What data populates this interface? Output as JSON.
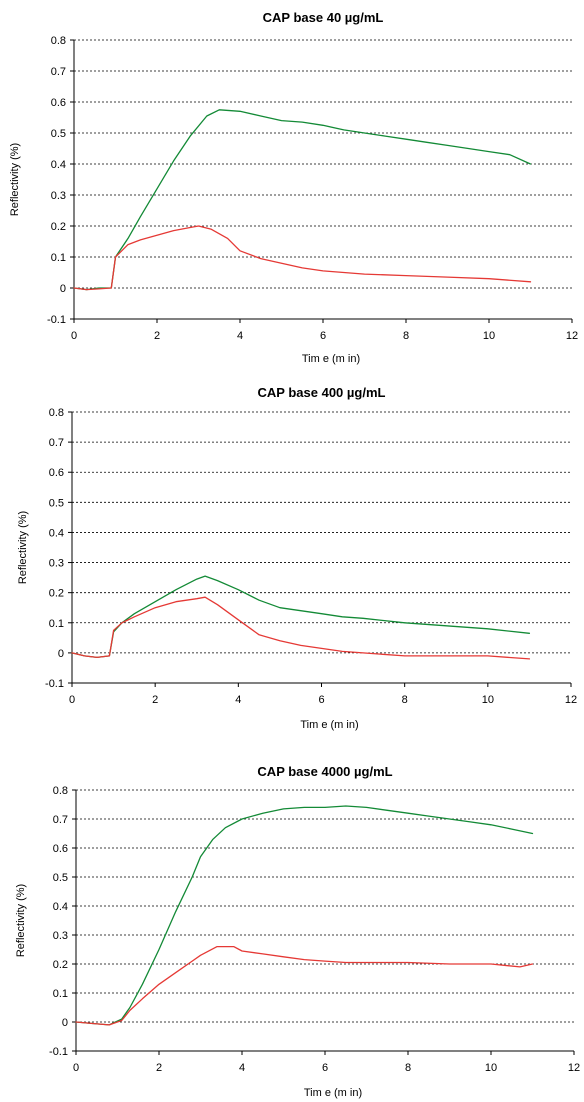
{
  "chart_data": [
    {
      "type": "line",
      "title": "CAP base 40 µg/mL",
      "xlabel": "Tim e (m in)",
      "ylabel": "Reflectivity (%)",
      "xlim": [
        0,
        12
      ],
      "ylim": [
        -0.1,
        0.8
      ],
      "xticks": [
        0,
        2,
        4,
        6,
        8,
        10,
        12
      ],
      "yticks": [
        -0.1,
        0,
        0.1,
        0.2,
        0.3,
        0.4,
        0.5,
        0.6,
        0.7,
        0.8
      ],
      "xtick_labels": [
        "0",
        "2",
        "4",
        "6",
        "8",
        "10",
        "12"
      ],
      "ytick_labels": [
        "-0.1",
        "0",
        "0.1",
        "0.2",
        "0.3",
        "0.4",
        "0.5",
        "0.6",
        "0.7",
        "0.8"
      ],
      "grid": true,
      "legend": "none",
      "series": [
        {
          "color": "#138a36",
          "x": [
            0,
            0.3,
            0.6,
            0.9,
            1.0,
            1.3,
            1.6,
            2.0,
            2.4,
            2.8,
            3.2,
            3.5,
            4.0,
            4.5,
            5.0,
            5.5,
            6.0,
            6.5,
            7.0,
            7.5,
            8.0,
            8.5,
            9.0,
            9.5,
            10.0,
            10.5,
            11.0
          ],
          "y": [
            0.0,
            -0.005,
            0.0,
            0.0,
            0.1,
            0.16,
            0.23,
            0.32,
            0.41,
            0.49,
            0.555,
            0.575,
            0.57,
            0.555,
            0.54,
            0.535,
            0.525,
            0.51,
            0.5,
            0.49,
            0.48,
            0.47,
            0.46,
            0.45,
            0.44,
            0.43,
            0.4
          ]
        },
        {
          "color": "#e53935",
          "x": [
            0,
            0.3,
            0.6,
            0.9,
            1.0,
            1.3,
            1.6,
            2.0,
            2.4,
            2.8,
            3.0,
            3.3,
            3.7,
            4.0,
            4.5,
            5.0,
            5.5,
            6.0,
            6.5,
            7.0,
            8.0,
            9.0,
            10.0,
            11.0
          ],
          "y": [
            0.0,
            -0.005,
            -0.003,
            0.0,
            0.1,
            0.14,
            0.155,
            0.17,
            0.185,
            0.195,
            0.2,
            0.19,
            0.16,
            0.12,
            0.095,
            0.08,
            0.065,
            0.055,
            0.05,
            0.045,
            0.04,
            0.035,
            0.03,
            0.02
          ]
        }
      ]
    },
    {
      "type": "line",
      "title": "CAP base 400 µg/mL",
      "xlabel": "Tim e (m in)",
      "ylabel": "Reflectivity (%)",
      "xlim": [
        0,
        12
      ],
      "ylim": [
        -0.1,
        0.8
      ],
      "xticks": [
        0,
        2,
        4,
        6,
        8,
        10,
        12
      ],
      "yticks": [
        -0.1,
        0,
        0.1,
        0.2,
        0.3,
        0.4,
        0.5,
        0.6,
        0.7,
        0.8
      ],
      "xtick_labels": [
        "0",
        "2",
        "4",
        "6",
        "8",
        "10",
        "12"
      ],
      "ytick_labels": [
        "-0.1",
        "0",
        "0.1",
        "0.2",
        "0.3",
        "0.4",
        "0.5",
        "0.6",
        "0.7",
        "0.8"
      ],
      "grid": true,
      "legend": "none",
      "series": [
        {
          "color": "#138a36",
          "x": [
            0,
            0.3,
            0.6,
            0.9,
            1.0,
            1.2,
            1.5,
            2.0,
            2.5,
            3.0,
            3.2,
            3.5,
            4.0,
            4.5,
            5.0,
            5.5,
            6.0,
            6.5,
            7.0,
            8.0,
            9.0,
            10.0,
            11.0
          ],
          "y": [
            0.0,
            -0.01,
            -0.015,
            -0.01,
            0.07,
            0.1,
            0.13,
            0.17,
            0.21,
            0.245,
            0.255,
            0.24,
            0.21,
            0.175,
            0.15,
            0.14,
            0.13,
            0.12,
            0.115,
            0.1,
            0.09,
            0.08,
            0.065
          ]
        },
        {
          "color": "#e53935",
          "x": [
            0,
            0.3,
            0.6,
            0.9,
            1.0,
            1.2,
            1.5,
            2.0,
            2.5,
            3.0,
            3.2,
            3.5,
            4.0,
            4.5,
            5.0,
            5.5,
            6.0,
            6.5,
            7.0,
            8.0,
            9.0,
            10.0,
            11.0
          ],
          "y": [
            0.0,
            -0.01,
            -0.015,
            -0.01,
            0.075,
            0.1,
            0.12,
            0.15,
            0.17,
            0.18,
            0.185,
            0.16,
            0.11,
            0.06,
            0.04,
            0.025,
            0.015,
            0.005,
            0.0,
            -0.01,
            -0.01,
            -0.01,
            -0.02
          ]
        }
      ]
    },
    {
      "type": "line",
      "title": "CAP base 4000 µg/mL",
      "xlabel": "Tim e (m in)",
      "ylabel": "Reflectivity (%)",
      "xlim": [
        0,
        12
      ],
      "ylim": [
        -0.1,
        0.8
      ],
      "xticks": [
        0,
        2,
        4,
        6,
        8,
        10,
        12
      ],
      "yticks": [
        -0.1,
        0,
        0.1,
        0.2,
        0.3,
        0.4,
        0.5,
        0.6,
        0.7,
        0.8
      ],
      "xtick_labels": [
        "0",
        "2",
        "4",
        "6",
        "8",
        "10",
        "12"
      ],
      "ytick_labels": [
        "-0.1",
        "0",
        "0.1",
        "0.2",
        "0.3",
        "0.4",
        "0.5",
        "0.6",
        "0.7",
        "0.8"
      ],
      "grid": true,
      "legend": "none",
      "series": [
        {
          "color": "#138a36",
          "x": [
            0,
            0.4,
            0.8,
            1.1,
            1.3,
            1.6,
            2.0,
            2.4,
            2.8,
            3.0,
            3.3,
            3.6,
            4.0,
            4.5,
            5.0,
            5.5,
            6.0,
            6.5,
            7.0,
            7.5,
            8.0,
            8.5,
            9.0,
            9.5,
            10.0,
            10.5,
            11.0
          ],
          "y": [
            0.0,
            -0.005,
            -0.01,
            0.01,
            0.05,
            0.13,
            0.25,
            0.38,
            0.5,
            0.57,
            0.63,
            0.67,
            0.7,
            0.72,
            0.735,
            0.74,
            0.74,
            0.745,
            0.74,
            0.73,
            0.72,
            0.71,
            0.7,
            0.69,
            0.68,
            0.665,
            0.65
          ]
        },
        {
          "color": "#e53935",
          "x": [
            0,
            0.4,
            0.8,
            1.1,
            1.3,
            1.6,
            2.0,
            2.4,
            2.8,
            3.0,
            3.4,
            3.8,
            4.0,
            4.5,
            5.0,
            5.5,
            6.0,
            6.5,
            7.0,
            8.0,
            9.0,
            10.0,
            10.7,
            11.0
          ],
          "y": [
            0.0,
            -0.005,
            -0.01,
            0.005,
            0.04,
            0.08,
            0.13,
            0.17,
            0.21,
            0.23,
            0.26,
            0.26,
            0.245,
            0.235,
            0.225,
            0.215,
            0.21,
            0.205,
            0.205,
            0.205,
            0.2,
            0.2,
            0.19,
            0.2
          ]
        }
      ]
    }
  ]
}
